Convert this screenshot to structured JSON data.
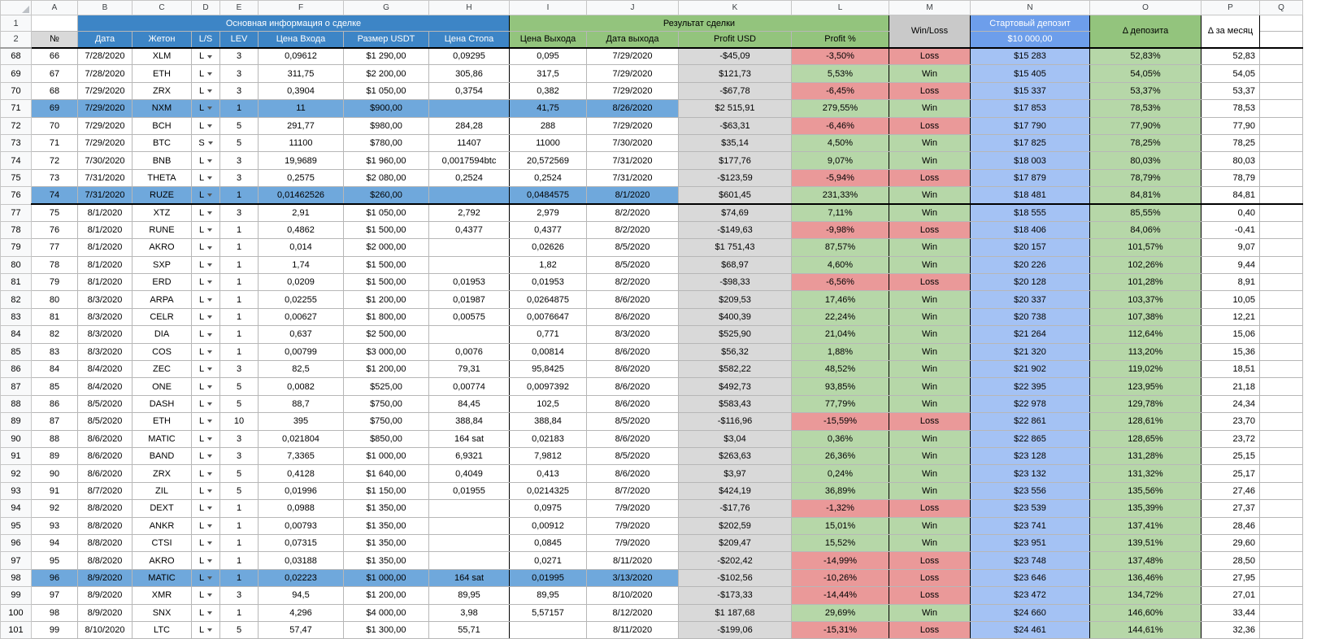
{
  "sheet": {
    "column_letters": [
      "A",
      "B",
      "C",
      "D",
      "E",
      "F",
      "G",
      "H",
      "I",
      "J",
      "K",
      "L",
      "M",
      "N",
      "O",
      "P",
      "Q"
    ],
    "header_row_numbers": [
      "1",
      "2"
    ]
  },
  "header": {
    "main_info": "Основная информация о сделке",
    "result": "Результат сделки",
    "win_loss": "Win/Loss",
    "start_deposit": "Стартовый депозит",
    "start_deposit_value": "$10 000,00",
    "delta_deposit": "Δ депозита",
    "delta_month": "Δ за месяц",
    "num": "№",
    "cols": [
      "Дата",
      "Жетон",
      "L/S",
      "LEV",
      "Цена Входа",
      "Размер USDT",
      "Цена Стопа",
      "Цена Выхода",
      "Дата выхода",
      "Profit USD",
      "Profit %"
    ]
  },
  "colors": {
    "header_blue": "#3d85c6",
    "header_green": "#93c47d",
    "header_gray": "#c9c9c9",
    "deposit_header_blue": "#6d9eeb",
    "profit_usd_gray": "#d9d9d9",
    "positive_green": "#b6d7a8",
    "negative_red": "#ea9999",
    "deposit_cell_blue": "#a4c2f4",
    "row_highlight_blue": "#6fa8dc"
  },
  "rows": [
    {
      "sheet_row": "68",
      "n": "66",
      "date": "7/28/2020",
      "token": "XLM",
      "ls": "L",
      "lev": "3",
      "entry": "0,09612",
      "size": "$1 290,00",
      "stop": "0,09295",
      "exit": "0,095",
      "exit_date": "7/29/2020",
      "profit_usd": "-$45,09",
      "profit_pct": "-3,50%",
      "result": "Loss",
      "deposit": "$15 283",
      "delta_dep": "52,83%",
      "delta_month": "52,83"
    },
    {
      "sheet_row": "69",
      "n": "67",
      "date": "7/28/2020",
      "token": "ETH",
      "ls": "L",
      "lev": "3",
      "entry": "311,75",
      "size": "$2 200,00",
      "stop": "305,86",
      "exit": "317,5",
      "exit_date": "7/29/2020",
      "profit_usd": "$121,73",
      "profit_pct": "5,53%",
      "result": "Win",
      "deposit": "$15 405",
      "delta_dep": "54,05%",
      "delta_month": "54,05"
    },
    {
      "sheet_row": "70",
      "n": "68",
      "date": "7/29/2020",
      "token": "ZRX",
      "ls": "L",
      "lev": "3",
      "entry": "0,3904",
      "size": "$1 050,00",
      "stop": "0,3754",
      "exit": "0,382",
      "exit_date": "7/29/2020",
      "profit_usd": "-$67,78",
      "profit_pct": "-6,45%",
      "result": "Loss",
      "deposit": "$15 337",
      "delta_dep": "53,37%",
      "delta_month": "53,37"
    },
    {
      "sheet_row": "71",
      "n": "69",
      "date": "7/29/2020",
      "token": "NXM",
      "ls": "L",
      "lev": "1",
      "entry": "11",
      "size": "$900,00",
      "stop": "",
      "exit": "41,75",
      "exit_date": "8/26/2020",
      "profit_usd": "$2 515,91",
      "profit_pct": "279,55%",
      "result": "Win",
      "deposit": "$17 853",
      "delta_dep": "78,53%",
      "delta_month": "78,53",
      "highlight": true
    },
    {
      "sheet_row": "72",
      "n": "70",
      "date": "7/29/2020",
      "token": "BCH",
      "ls": "L",
      "lev": "5",
      "entry": "291,77",
      "size": "$980,00",
      "stop": "284,28",
      "exit": "288",
      "exit_date": "7/29/2020",
      "profit_usd": "-$63,31",
      "profit_pct": "-6,46%",
      "result": "Loss",
      "deposit": "$17 790",
      "delta_dep": "77,90%",
      "delta_month": "77,90"
    },
    {
      "sheet_row": "73",
      "n": "71",
      "date": "7/29/2020",
      "token": "BTC",
      "ls": "S",
      "lev": "5",
      "entry": "11100",
      "size": "$780,00",
      "stop": "11407",
      "exit": "11000",
      "exit_date": "7/30/2020",
      "profit_usd": "$35,14",
      "profit_pct": "4,50%",
      "result": "Win",
      "deposit": "$17 825",
      "delta_dep": "78,25%",
      "delta_month": "78,25"
    },
    {
      "sheet_row": "74",
      "n": "72",
      "date": "7/30/2020",
      "token": "BNB",
      "ls": "L",
      "lev": "3",
      "entry": "19,9689",
      "size": "$1 960,00",
      "stop": "0,0017594btc",
      "exit": "20,572569",
      "exit_date": "7/31/2020",
      "profit_usd": "$177,76",
      "profit_pct": "9,07%",
      "result": "Win",
      "deposit": "$18 003",
      "delta_dep": "80,03%",
      "delta_month": "80,03"
    },
    {
      "sheet_row": "75",
      "n": "73",
      "date": "7/31/2020",
      "token": "THETA",
      "ls": "L",
      "lev": "3",
      "entry": "0,2575",
      "size": "$2 080,00",
      "stop": "0,2524",
      "exit": "0,2524",
      "exit_date": "7/31/2020",
      "profit_usd": "-$123,59",
      "profit_pct": "-5,94%",
      "result": "Loss",
      "deposit": "$17 879",
      "delta_dep": "78,79%",
      "delta_month": "78,79"
    },
    {
      "sheet_row": "76",
      "n": "74",
      "date": "7/31/2020",
      "token": "RUZE",
      "ls": "L",
      "lev": "1",
      "entry": "0,01462526",
      "size": "$260,00",
      "stop": "",
      "exit": "0,0484575",
      "exit_date": "8/1/2020",
      "profit_usd": "$601,45",
      "profit_pct": "231,33%",
      "result": "Win",
      "deposit": "$18 481",
      "delta_dep": "84,81%",
      "delta_month": "84,81",
      "highlight": true,
      "thick_bottom": true
    },
    {
      "sheet_row": "77",
      "n": "75",
      "date": "8/1/2020",
      "token": "XTZ",
      "ls": "L",
      "lev": "3",
      "entry": "2,91",
      "size": "$1 050,00",
      "stop": "2,792",
      "exit": "2,979",
      "exit_date": "8/2/2020",
      "profit_usd": "$74,69",
      "profit_pct": "7,11%",
      "result": "Win",
      "deposit": "$18 555",
      "delta_dep": "85,55%",
      "delta_month": "0,40"
    },
    {
      "sheet_row": "78",
      "n": "76",
      "date": "8/1/2020",
      "token": "RUNE",
      "ls": "L",
      "lev": "1",
      "entry": "0,4862",
      "size": "$1 500,00",
      "stop": "0,4377",
      "exit": "0,4377",
      "exit_date": "8/2/2020",
      "profit_usd": "-$149,63",
      "profit_pct": "-9,98%",
      "result": "Loss",
      "deposit": "$18 406",
      "delta_dep": "84,06%",
      "delta_month": "-0,41"
    },
    {
      "sheet_row": "79",
      "n": "77",
      "date": "8/1/2020",
      "token": "AKRO",
      "ls": "L",
      "lev": "1",
      "entry": "0,014",
      "size": "$2 000,00",
      "stop": "",
      "exit": "0,02626",
      "exit_date": "8/5/2020",
      "profit_usd": "$1 751,43",
      "profit_pct": "87,57%",
      "result": "Win",
      "deposit": "$20 157",
      "delta_dep": "101,57%",
      "delta_month": "9,07"
    },
    {
      "sheet_row": "80",
      "n": "78",
      "date": "8/1/2020",
      "token": "SXP",
      "ls": "L",
      "lev": "1",
      "entry": "1,74",
      "size": "$1 500,00",
      "stop": "",
      "exit": "1,82",
      "exit_date": "8/5/2020",
      "profit_usd": "$68,97",
      "profit_pct": "4,60%",
      "result": "Win",
      "deposit": "$20 226",
      "delta_dep": "102,26%",
      "delta_month": "9,44"
    },
    {
      "sheet_row": "81",
      "n": "79",
      "date": "8/1/2020",
      "token": "ERD",
      "ls": "L",
      "lev": "1",
      "entry": "0,0209",
      "size": "$1 500,00",
      "stop": "0,01953",
      "exit": "0,01953",
      "exit_date": "8/2/2020",
      "profit_usd": "-$98,33",
      "profit_pct": "-6,56%",
      "result": "Loss",
      "deposit": "$20 128",
      "delta_dep": "101,28%",
      "delta_month": "8,91"
    },
    {
      "sheet_row": "82",
      "n": "80",
      "date": "8/3/2020",
      "token": "ARPA",
      "ls": "L",
      "lev": "1",
      "entry": "0,02255",
      "size": "$1 200,00",
      "stop": "0,01987",
      "exit": "0,0264875",
      "exit_date": "8/6/2020",
      "profit_usd": "$209,53",
      "profit_pct": "17,46%",
      "result": "Win",
      "deposit": "$20 337",
      "delta_dep": "103,37%",
      "delta_month": "10,05"
    },
    {
      "sheet_row": "83",
      "n": "81",
      "date": "8/3/2020",
      "token": "CELR",
      "ls": "L",
      "lev": "1",
      "entry": "0,00627",
      "size": "$1 800,00",
      "stop": "0,00575",
      "exit": "0,0076647",
      "exit_date": "8/6/2020",
      "profit_usd": "$400,39",
      "profit_pct": "22,24%",
      "result": "Win",
      "deposit": "$20 738",
      "delta_dep": "107,38%",
      "delta_month": "12,21"
    },
    {
      "sheet_row": "84",
      "n": "82",
      "date": "8/3/2020",
      "token": "DIA",
      "ls": "L",
      "lev": "1",
      "entry": "0,637",
      "size": "$2 500,00",
      "stop": "",
      "exit": "0,771",
      "exit_date": "8/3/2020",
      "profit_usd": "$525,90",
      "profit_pct": "21,04%",
      "result": "Win",
      "deposit": "$21 264",
      "delta_dep": "112,64%",
      "delta_month": "15,06"
    },
    {
      "sheet_row": "85",
      "n": "83",
      "date": "8/3/2020",
      "token": "COS",
      "ls": "L",
      "lev": "1",
      "entry": "0,00799",
      "size": "$3 000,00",
      "stop": "0,0076",
      "exit": "0,00814",
      "exit_date": "8/6/2020",
      "profit_usd": "$56,32",
      "profit_pct": "1,88%",
      "result": "Win",
      "deposit": "$21 320",
      "delta_dep": "113,20%",
      "delta_month": "15,36"
    },
    {
      "sheet_row": "86",
      "n": "84",
      "date": "8/4/2020",
      "token": "ZEC",
      "ls": "L",
      "lev": "3",
      "entry": "82,5",
      "size": "$1 200,00",
      "stop": "79,31",
      "exit": "95,8425",
      "exit_date": "8/6/2020",
      "profit_usd": "$582,22",
      "profit_pct": "48,52%",
      "result": "Win",
      "deposit": "$21 902",
      "delta_dep": "119,02%",
      "delta_month": "18,51"
    },
    {
      "sheet_row": "87",
      "n": "85",
      "date": "8/4/2020",
      "token": "ONE",
      "ls": "L",
      "lev": "5",
      "entry": "0,0082",
      "size": "$525,00",
      "stop": "0,00774",
      "exit": "0,0097392",
      "exit_date": "8/6/2020",
      "profit_usd": "$492,73",
      "profit_pct": "93,85%",
      "result": "Win",
      "deposit": "$22 395",
      "delta_dep": "123,95%",
      "delta_month": "21,18"
    },
    {
      "sheet_row": "88",
      "n": "86",
      "date": "8/5/2020",
      "token": "DASH",
      "ls": "L",
      "lev": "5",
      "entry": "88,7",
      "size": "$750,00",
      "stop": "84,45",
      "exit": "102,5",
      "exit_date": "8/6/2020",
      "profit_usd": "$583,43",
      "profit_pct": "77,79%",
      "result": "Win",
      "deposit": "$22 978",
      "delta_dep": "129,78%",
      "delta_month": "24,34"
    },
    {
      "sheet_row": "89",
      "n": "87",
      "date": "8/5/2020",
      "token": "ETH",
      "ls": "L",
      "lev": "10",
      "entry": "395",
      "size": "$750,00",
      "stop": "388,84",
      "exit": "388,84",
      "exit_date": "8/5/2020",
      "profit_usd": "-$116,96",
      "profit_pct": "-15,59%",
      "result": "Loss",
      "deposit": "$22 861",
      "delta_dep": "128,61%",
      "delta_month": "23,70"
    },
    {
      "sheet_row": "90",
      "n": "88",
      "date": "8/6/2020",
      "token": "MATIC",
      "ls": "L",
      "lev": "3",
      "entry": "0,021804",
      "size": "$850,00",
      "stop": "164 sat",
      "exit": "0,02183",
      "exit_date": "8/6/2020",
      "profit_usd": "$3,04",
      "profit_pct": "0,36%",
      "result": "Win",
      "deposit": "$22 865",
      "delta_dep": "128,65%",
      "delta_month": "23,72"
    },
    {
      "sheet_row": "91",
      "n": "89",
      "date": "8/6/2020",
      "token": "BAND",
      "ls": "L",
      "lev": "3",
      "entry": "7,3365",
      "size": "$1 000,00",
      "stop": "6,9321",
      "exit": "7,9812",
      "exit_date": "8/5/2020",
      "profit_usd": "$263,63",
      "profit_pct": "26,36%",
      "result": "Win",
      "deposit": "$23 128",
      "delta_dep": "131,28%",
      "delta_month": "25,15"
    },
    {
      "sheet_row": "92",
      "n": "90",
      "date": "8/6/2020",
      "token": "ZRX",
      "ls": "L",
      "lev": "5",
      "entry": "0,4128",
      "size": "$1 640,00",
      "stop": "0,4049",
      "exit": "0,413",
      "exit_date": "8/6/2020",
      "profit_usd": "$3,97",
      "profit_pct": "0,24%",
      "result": "Win",
      "deposit": "$23 132",
      "delta_dep": "131,32%",
      "delta_month": "25,17"
    },
    {
      "sheet_row": "93",
      "n": "91",
      "date": "8/7/2020",
      "token": "ZIL",
      "ls": "L",
      "lev": "5",
      "entry": "0,01996",
      "size": "$1 150,00",
      "stop": "0,01955",
      "exit": "0,0214325",
      "exit_date": "8/7/2020",
      "profit_usd": "$424,19",
      "profit_pct": "36,89%",
      "result": "Win",
      "deposit": "$23 556",
      "delta_dep": "135,56%",
      "delta_month": "27,46"
    },
    {
      "sheet_row": "94",
      "n": "92",
      "date": "8/8/2020",
      "token": "DEXT",
      "ls": "L",
      "lev": "1",
      "entry": "0,0988",
      "size": "$1 350,00",
      "stop": "",
      "exit": "0,0975",
      "exit_date": "7/9/2020",
      "profit_usd": "-$17,76",
      "profit_pct": "-1,32%",
      "result": "Loss",
      "deposit": "$23 539",
      "delta_dep": "135,39%",
      "delta_month": "27,37"
    },
    {
      "sheet_row": "95",
      "n": "93",
      "date": "8/8/2020",
      "token": "ANKR",
      "ls": "L",
      "lev": "1",
      "entry": "0,00793",
      "size": "$1 350,00",
      "stop": "",
      "exit": "0,00912",
      "exit_date": "7/9/2020",
      "profit_usd": "$202,59",
      "profit_pct": "15,01%",
      "result": "Win",
      "deposit": "$23 741",
      "delta_dep": "137,41%",
      "delta_month": "28,46"
    },
    {
      "sheet_row": "96",
      "n": "94",
      "date": "8/8/2020",
      "token": "CTSI",
      "ls": "L",
      "lev": "1",
      "entry": "0,07315",
      "size": "$1 350,00",
      "stop": "",
      "exit": "0,0845",
      "exit_date": "7/9/2020",
      "profit_usd": "$209,47",
      "profit_pct": "15,52%",
      "result": "Win",
      "deposit": "$23 951",
      "delta_dep": "139,51%",
      "delta_month": "29,60"
    },
    {
      "sheet_row": "97",
      "n": "95",
      "date": "8/8/2020",
      "token": "AKRO",
      "ls": "L",
      "lev": "1",
      "entry": "0,03188",
      "size": "$1 350,00",
      "stop": "",
      "exit": "0,0271",
      "exit_date": "8/11/2020",
      "profit_usd": "-$202,42",
      "profit_pct": "-14,99%",
      "result": "Loss",
      "deposit": "$23 748",
      "delta_dep": "137,48%",
      "delta_month": "28,50"
    },
    {
      "sheet_row": "98",
      "n": "96",
      "date": "8/9/2020",
      "token": "MATIC",
      "ls": "L",
      "lev": "1",
      "entry": "0,02223",
      "size": "$1 000,00",
      "stop": "164 sat",
      "exit": "0,01995",
      "exit_date": "3/13/2020",
      "profit_usd": "-$102,56",
      "profit_pct": "-10,26%",
      "result": "Loss",
      "deposit": "$23 646",
      "delta_dep": "136,46%",
      "delta_month": "27,95",
      "highlight": true
    },
    {
      "sheet_row": "99",
      "n": "97",
      "date": "8/9/2020",
      "token": "XMR",
      "ls": "L",
      "lev": "3",
      "entry": "94,5",
      "size": "$1 200,00",
      "stop": "89,95",
      "exit": "89,95",
      "exit_date": "8/10/2020",
      "profit_usd": "-$173,33",
      "profit_pct": "-14,44%",
      "result": "Loss",
      "deposit": "$23 472",
      "delta_dep": "134,72%",
      "delta_month": "27,01"
    },
    {
      "sheet_row": "100",
      "n": "98",
      "date": "8/9/2020",
      "token": "SNX",
      "ls": "L",
      "lev": "1",
      "entry": "4,296",
      "size": "$4 000,00",
      "stop": "3,98",
      "exit": "5,57157",
      "exit_date": "8/12/2020",
      "profit_usd": "$1 187,68",
      "profit_pct": "29,69%",
      "result": "Win",
      "deposit": "$24 660",
      "delta_dep": "146,60%",
      "delta_month": "33,44"
    },
    {
      "sheet_row": "101",
      "n": "99",
      "date": "8/10/2020",
      "token": "LTC",
      "ls": "L",
      "lev": "5",
      "entry": "57,47",
      "size": "$1 300,00",
      "stop": "55,71",
      "exit": "",
      "exit_date": "8/11/2020",
      "profit_usd": "-$199,06",
      "profit_pct": "-15,31%",
      "result": "Loss",
      "deposit": "$24 461",
      "delta_dep": "144,61%",
      "delta_month": "32,36"
    }
  ]
}
